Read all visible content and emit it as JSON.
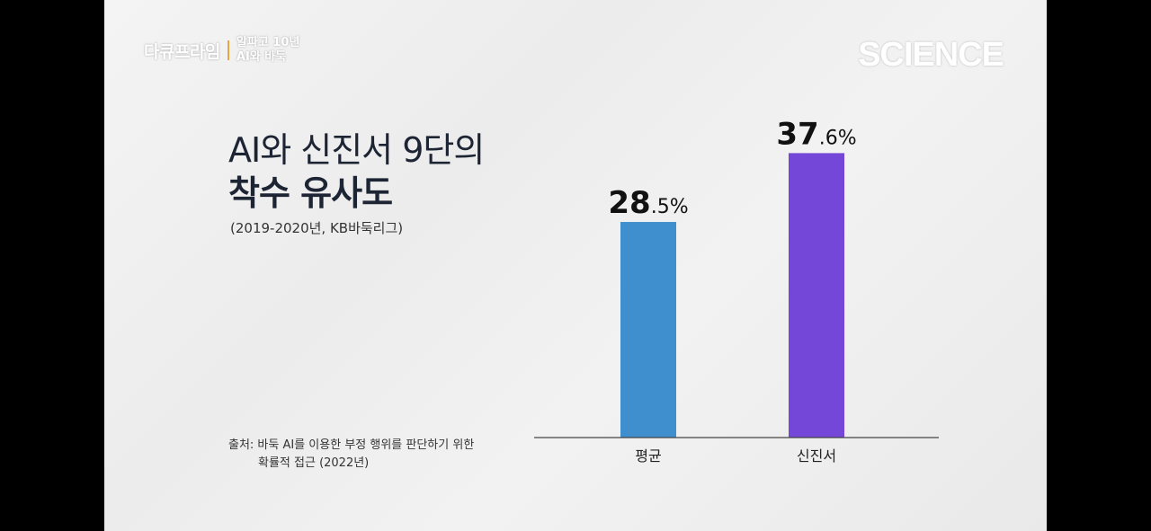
{
  "header": {
    "brand": "다큐프라임",
    "episode_line1": "알파고 10년",
    "episode_line2": "AI와 바둑",
    "channel": "SCIENCE"
  },
  "title": {
    "line1": "AI와 신진서 9단의",
    "line2": "착수 유사도"
  },
  "subtitle": "(2019-2020년, KB바둑리그)",
  "source": {
    "line1": "출처: 바둑 AI를 이용한 부정 행위를 판단하기 위한",
    "line2": "확률적 접근 (2022년)"
  },
  "chart_data": {
    "type": "bar",
    "categories": [
      "평균",
      "신진서"
    ],
    "values": [
      28.5,
      37.6
    ],
    "value_labels": [
      {
        "major": "28",
        "minor": ".5%"
      },
      {
        "major": "37",
        "minor": ".6%"
      }
    ],
    "colors": [
      "#3f8fce",
      "#7447d8"
    ],
    "ylim": [
      0,
      40
    ],
    "unit": "%",
    "grid": false,
    "title": "AI와 신진서 9단의 착수 유사도",
    "xlabel": "",
    "ylabel": ""
  }
}
